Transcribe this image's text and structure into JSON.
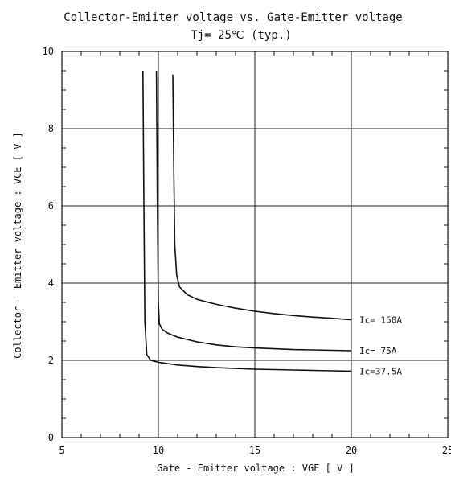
{
  "chart_data": {
    "type": "line",
    "title": "Collector-Emiiter voltage  vs. Gate-Emitter voltage",
    "subtitle": "Tj= 25℃  (typ.)",
    "xlabel": "Gate - Emitter voltage  :  VGE  [ V ]",
    "ylabel": "Collector - Emitter voltage  :  VCE  [ V ]",
    "xlim": [
      5,
      25
    ],
    "ylim": [
      0,
      10
    ],
    "x_ticks": [
      "5",
      "10",
      "15",
      "20",
      "25"
    ],
    "y_ticks": [
      "0",
      "2",
      "4",
      "6",
      "8",
      "10"
    ],
    "grid": true,
    "series": [
      {
        "name": "Ic=37.5A",
        "x": [
          9.2,
          9.25,
          9.3,
          9.4,
          9.6,
          10,
          11,
          12,
          13,
          14,
          15,
          16,
          17,
          18,
          19,
          20
        ],
        "y": [
          9.5,
          6.0,
          3.0,
          2.15,
          2.0,
          1.95,
          1.88,
          1.84,
          1.81,
          1.79,
          1.77,
          1.76,
          1.75,
          1.74,
          1.73,
          1.72
        ]
      },
      {
        "name": "Ic= 75A",
        "x": [
          9.9,
          9.95,
          10.0,
          10.05,
          10.2,
          10.5,
          11,
          12,
          13,
          14,
          15,
          16,
          17,
          18,
          19,
          20
        ],
        "y": [
          9.5,
          6.0,
          3.5,
          2.95,
          2.8,
          2.7,
          2.6,
          2.48,
          2.4,
          2.35,
          2.32,
          2.3,
          2.28,
          2.27,
          2.26,
          2.25
        ]
      },
      {
        "name": "Ic= 150A",
        "x": [
          10.75,
          10.8,
          10.85,
          10.95,
          11.1,
          11.5,
          12,
          13,
          14,
          15,
          16,
          17,
          18,
          19,
          20
        ],
        "y": [
          9.4,
          7.0,
          5.0,
          4.2,
          3.9,
          3.7,
          3.58,
          3.45,
          3.35,
          3.27,
          3.21,
          3.16,
          3.12,
          3.09,
          3.05
        ]
      }
    ]
  }
}
